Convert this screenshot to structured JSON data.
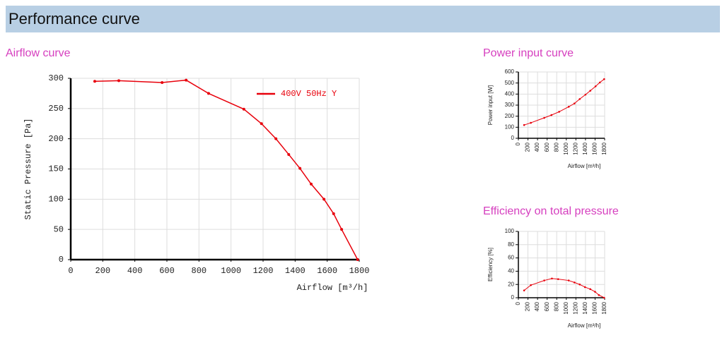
{
  "header": {
    "title": "Performance curve"
  },
  "chart_data": [
    {
      "type": "line",
      "title": "Airflow curve",
      "xlabel": "Airflow [m³/h]",
      "ylabel": "Static Pressure [Pa]",
      "x": [
        150,
        300,
        570,
        720,
        860,
        1080,
        1190,
        1280,
        1360,
        1430,
        1500,
        1580,
        1640,
        1690,
        1790
      ],
      "series": [
        {
          "name": "400V 50Hz Y",
          "color": "#e8000b",
          "values": [
            295,
            296,
            293,
            297,
            275,
            249,
            225,
            200,
            174,
            151,
            125,
            100,
            76,
            50,
            0
          ]
        }
      ],
      "xlim": [
        0,
        1800
      ],
      "xticks": [
        0,
        200,
        400,
        600,
        800,
        1000,
        1200,
        1400,
        1600,
        1800
      ],
      "ylim": [
        0,
        300
      ],
      "yticks": [
        0,
        50,
        100,
        150,
        200,
        250,
        300
      ],
      "grid": true,
      "legend": "upper right"
    },
    {
      "type": "line",
      "title": "Power input curve",
      "xlabel": "Airflow [m³/h]",
      "ylabel": "Power input [W]",
      "x": [
        120,
        260,
        540,
        690,
        850,
        1050,
        1170,
        1280,
        1400,
        1500,
        1610,
        1700,
        1790
      ],
      "values": [
        120,
        140,
        185,
        210,
        240,
        285,
        315,
        355,
        395,
        430,
        470,
        505,
        535
      ],
      "color": "#e8000b",
      "xlim": [
        0,
        1800
      ],
      "xticks": [
        0,
        200,
        400,
        600,
        800,
        1000,
        1200,
        1400,
        1600,
        1800
      ],
      "ylim": [
        0,
        600
      ],
      "yticks": [
        0,
        100,
        200,
        300,
        400,
        500,
        600
      ],
      "grid": true
    },
    {
      "type": "line",
      "title": "Efficiency on total pressure",
      "xlabel": "Airflow [m³/h]",
      "ylabel": "Efficiency [%]",
      "x": [
        120,
        260,
        540,
        700,
        830,
        1050,
        1170,
        1280,
        1390,
        1500,
        1600,
        1680,
        1790
      ],
      "values": [
        11,
        19,
        26,
        29,
        28,
        26,
        23,
        20,
        16,
        13,
        9,
        4,
        0
      ],
      "color": "#e8000b",
      "xlim": [
        0,
        1800
      ],
      "xticks": [
        0,
        200,
        400,
        600,
        800,
        1000,
        1200,
        1400,
        1600,
        1800
      ],
      "ylim": [
        0,
        100
      ],
      "yticks": [
        0,
        20,
        40,
        60,
        80,
        100
      ],
      "grid": true
    }
  ]
}
